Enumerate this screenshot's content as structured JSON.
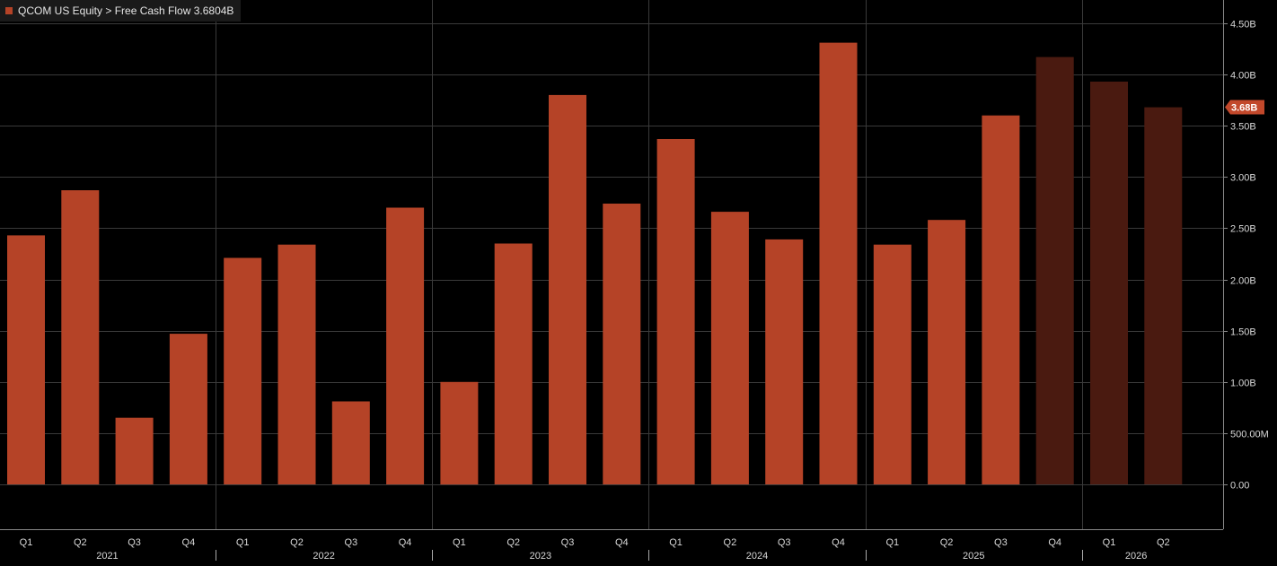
{
  "legend": {
    "text": "QCOM US Equity > Free Cash Flow 3.6804B"
  },
  "colors": {
    "background": "#000000",
    "actual_bar": "#b54327",
    "estimate_bar": "#4a1a10",
    "grid": "#3a3a3a",
    "axis_text": "#d8d8d8",
    "last_value_tag": "#c2482b"
  },
  "chart_data": {
    "type": "bar",
    "title": "",
    "xlabel": "",
    "ylabel": "",
    "ylim": [
      -0.45,
      4.55
    ],
    "y_unit": "billions USD",
    "y_ticks": [
      0,
      0.5,
      1.0,
      1.5,
      2.0,
      2.5,
      3.0,
      3.5,
      4.0,
      4.5
    ],
    "y_tick_labels": [
      "0.00",
      "500.00M",
      "1.00B",
      "1.50B",
      "2.00B",
      "2.50B",
      "3.00B",
      "3.50B",
      "4.00B",
      "4.50B"
    ],
    "grid": true,
    "last_value_label": "3.68B",
    "last_value": 3.68,
    "categories": [
      "Q1",
      "Q2",
      "Q3",
      "Q4",
      "Q1",
      "Q2",
      "Q3",
      "Q4",
      "Q1",
      "Q2",
      "Q3",
      "Q4",
      "Q1",
      "Q2",
      "Q3",
      "Q4",
      "Q1",
      "Q2",
      "Q3",
      "Q4",
      "Q1",
      "Q2"
    ],
    "years": [
      {
        "label": "2021",
        "start": 0,
        "end": 3
      },
      {
        "label": "2022",
        "start": 4,
        "end": 7
      },
      {
        "label": "2023",
        "start": 8,
        "end": 11
      },
      {
        "label": "2024",
        "start": 12,
        "end": 15
      },
      {
        "label": "2025",
        "start": 16,
        "end": 19
      },
      {
        "label": "2026",
        "start": 20,
        "end": 21
      }
    ],
    "series": [
      {
        "name": "Free Cash Flow",
        "values": [
          2.43,
          2.87,
          0.65,
          1.47,
          2.21,
          2.34,
          0.81,
          2.7,
          1.0,
          2.35,
          3.8,
          2.74,
          3.37,
          2.66,
          2.39,
          4.31,
          2.34,
          2.58,
          3.6,
          4.17,
          3.93,
          3.68
        ],
        "estimate": [
          false,
          false,
          false,
          false,
          false,
          false,
          false,
          false,
          false,
          false,
          false,
          false,
          false,
          false,
          false,
          false,
          false,
          false,
          false,
          true,
          true,
          true
        ]
      }
    ]
  }
}
